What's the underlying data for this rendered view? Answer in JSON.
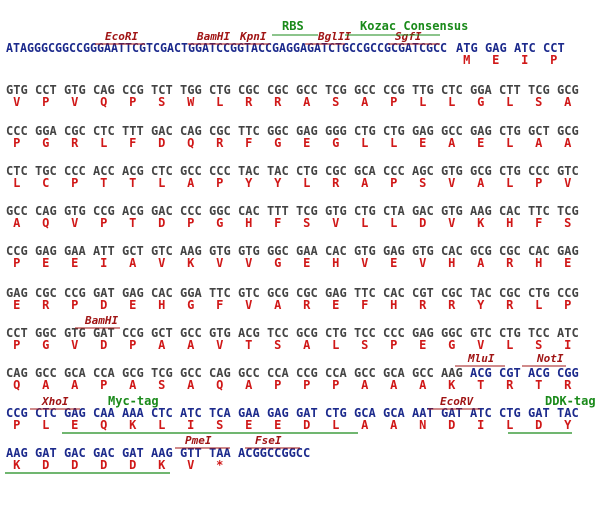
{
  "header": {
    "leader": "ATAGGGCGGCCGGGAATTCGTCGACTGGATCCGGTACCGAGGAGATCTGCCGCCGCGATCGCC"
  },
  "rows": [
    {
      "codons": [
        "ATG",
        "GAG",
        "ATC",
        "CCT"
      ],
      "aa": [
        "M",
        "E",
        "I",
        "P"
      ]
    },
    {
      "codons": [
        "GTG",
        "CCT",
        "GTG",
        "CAG",
        "CCG",
        "TCT",
        "TGG",
        "CTG",
        "CGC",
        "CGC",
        "GCC",
        "TCG",
        "GCC",
        "CCG",
        "TTG",
        "CTC",
        "GGA",
        "CTT",
        "TCG",
        "GCG"
      ],
      "aa": [
        "V",
        "P",
        "V",
        "Q",
        "P",
        "S",
        "W",
        "L",
        "R",
        "R",
        "A",
        "S",
        "A",
        "P",
        "L",
        "L",
        "G",
        "L",
        "S",
        "A"
      ]
    },
    {
      "codons": [
        "CCC",
        "GGA",
        "CGC",
        "CTC",
        "TTT",
        "GAC",
        "CAG",
        "CGC",
        "TTC",
        "GGC",
        "GAG",
        "GGG",
        "CTG",
        "CTG",
        "GAG",
        "GCC",
        "GAG",
        "CTG",
        "GCT",
        "GCG"
      ],
      "aa": [
        "P",
        "G",
        "R",
        "L",
        "F",
        "D",
        "Q",
        "R",
        "F",
        "G",
        "E",
        "G",
        "L",
        "L",
        "E",
        "A",
        "E",
        "L",
        "A",
        "A"
      ]
    },
    {
      "codons": [
        "CTC",
        "TGC",
        "CCC",
        "ACC",
        "ACG",
        "CTC",
        "GCC",
        "CCC",
        "TAC",
        "TAC",
        "CTG",
        "CGC",
        "GCA",
        "CCC",
        "AGC",
        "GTG",
        "GCG",
        "CTG",
        "CCC",
        "GTC"
      ],
      "aa": [
        "L",
        "C",
        "P",
        "T",
        "T",
        "L",
        "A",
        "P",
        "Y",
        "Y",
        "L",
        "R",
        "A",
        "P",
        "S",
        "V",
        "A",
        "L",
        "P",
        "V"
      ]
    },
    {
      "codons": [
        "GCC",
        "CAG",
        "GTG",
        "CCG",
        "ACG",
        "GAC",
        "CCC",
        "GGC",
        "CAC",
        "TTT",
        "TCG",
        "GTG",
        "CTG",
        "CTA",
        "GAC",
        "GTG",
        "AAG",
        "CAC",
        "TTC",
        "TCG"
      ],
      "aa": [
        "A",
        "Q",
        "V",
        "P",
        "T",
        "D",
        "P",
        "G",
        "H",
        "F",
        "S",
        "V",
        "L",
        "L",
        "D",
        "V",
        "K",
        "H",
        "F",
        "S"
      ]
    },
    {
      "codons": [
        "CCG",
        "GAG",
        "GAA",
        "ATT",
        "GCT",
        "GTC",
        "AAG",
        "GTG",
        "GTG",
        "GGC",
        "GAA",
        "CAC",
        "GTG",
        "GAG",
        "GTG",
        "CAC",
        "GCG",
        "CGC",
        "CAC",
        "GAG"
      ],
      "aa": [
        "P",
        "E",
        "E",
        "I",
        "A",
        "V",
        "K",
        "V",
        "V",
        "G",
        "E",
        "H",
        "V",
        "E",
        "V",
        "H",
        "A",
        "R",
        "H",
        "E"
      ]
    },
    {
      "codons": [
        "GAG",
        "CGC",
        "CCG",
        "GAT",
        "GAG",
        "CAC",
        "GGA",
        "TTC",
        "GTC",
        "GCG",
        "CGC",
        "GAG",
        "TTC",
        "CAC",
        "CGT",
        "CGC",
        "TAC",
        "CGC",
        "CTG",
        "CCG"
      ],
      "aa": [
        "E",
        "R",
        "P",
        "D",
        "E",
        "H",
        "G",
        "F",
        "V",
        "A",
        "R",
        "E",
        "F",
        "H",
        "R",
        "R",
        "Y",
        "R",
        "L",
        "P"
      ]
    },
    {
      "codons": [
        "CCT",
        "GGC",
        "GTG",
        "GAT",
        "CCG",
        "GCT",
        "GCC",
        "GTG",
        "ACG",
        "TCC",
        "GCG",
        "CTG",
        "TCC",
        "CCC",
        "GAG",
        "GGC",
        "GTC",
        "CTG",
        "TCC",
        "ATC"
      ],
      "aa": [
        "P",
        "G",
        "V",
        "D",
        "P",
        "A",
        "A",
        "V",
        "T",
        "S",
        "A",
        "L",
        "S",
        "P",
        "E",
        "G",
        "V",
        "L",
        "S",
        "I"
      ]
    },
    {
      "codons": [
        "CAG",
        "GCC",
        "GCA",
        "CCA",
        "GCG",
        "TCG",
        "GCC",
        "CAG",
        "GCC",
        "CCA",
        "CCG",
        "CCA",
        "GCC",
        "GCA",
        "GCC",
        "AAG",
        "ACG",
        "CGT",
        "ACG",
        "CGG"
      ],
      "aa": [
        "Q",
        "A",
        "A",
        "P",
        "A",
        "S",
        "A",
        "Q",
        "A",
        "P",
        "P",
        "P",
        "A",
        "A",
        "A",
        "K",
        "T",
        "R",
        "T",
        "R"
      ]
    },
    {
      "codons": [
        "CCG",
        "CTC",
        "GAG",
        "CAA",
        "AAA",
        "CTC",
        "ATC",
        "TCA",
        "GAA",
        "GAG",
        "GAT",
        "CTG",
        "GCA",
        "GCA",
        "AAT",
        "GAT",
        "ATC",
        "CTG",
        "GAT",
        "TAC"
      ],
      "aa": [
        "P",
        "L",
        "E",
        "Q",
        "K",
        "L",
        "I",
        "S",
        "E",
        "E",
        "D",
        "L",
        "A",
        "A",
        "N",
        "D",
        "I",
        "L",
        "D",
        "Y"
      ]
    },
    {
      "codons": [
        "AAG",
        "GAT",
        "GAC",
        "GAC",
        "GAT",
        "AAG",
        "GTT",
        "TAA"
      ],
      "aa": [
        "K",
        "D",
        "D",
        "D",
        "D",
        "K",
        "V",
        "*"
      ],
      "trailer": "ACGGCCGGCC"
    }
  ],
  "sites": [
    "EcoRI",
    "BamHI",
    "KpnI",
    "BglII",
    "SgfI",
    "BamHI",
    "MluI",
    "NotI",
    "XhoI",
    "EcoRV",
    "PmeI",
    "FseI"
  ],
  "features": [
    "RBS",
    "Kozac Consensus",
    "Myc-tag",
    "DDK-tag"
  ]
}
